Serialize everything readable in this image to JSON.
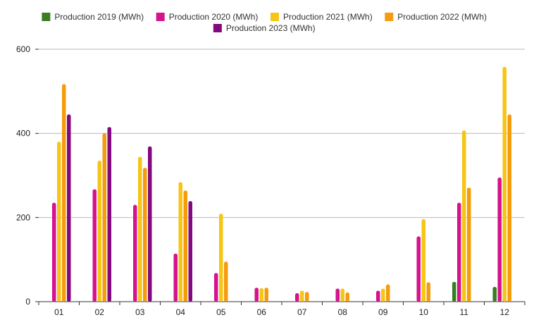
{
  "chart_data": {
    "type": "bar",
    "categories": [
      "01",
      "02",
      "03",
      "04",
      "05",
      "06",
      "07",
      "08",
      "09",
      "10",
      "11",
      "12"
    ],
    "yticks": [
      "0",
      "200",
      "400",
      "600"
    ],
    "ylim": [
      0,
      600
    ],
    "grid": true,
    "legend_position": "top",
    "series": [
      {
        "name": "Production 2019 (MWh)",
        "color": "#3a7d22",
        "values": [
          null,
          null,
          null,
          null,
          null,
          null,
          null,
          null,
          null,
          null,
          47,
          35
        ]
      },
      {
        "name": "Production 2020 (MWh)",
        "color": "#d5138d",
        "values": [
          235,
          267,
          230,
          114,
          68,
          33,
          20,
          31,
          26,
          155,
          235,
          295
        ]
      },
      {
        "name": "Production 2021 (MWh)",
        "color": "#f6c516",
        "values": [
          380,
          335,
          344,
          284,
          209,
          32,
          26,
          31,
          31,
          196,
          407,
          558
        ]
      },
      {
        "name": "Production 2022 (MWh)",
        "color": "#f59c0d",
        "values": [
          517,
          400,
          318,
          264,
          95,
          33,
          23,
          22,
          41,
          46,
          271,
          445
        ]
      },
      {
        "name": "Production 2023 (MWh)",
        "color": "#820a7e",
        "values": [
          445,
          415,
          369,
          239,
          null,
          null,
          null,
          null,
          null,
          null,
          null,
          null
        ]
      }
    ]
  }
}
